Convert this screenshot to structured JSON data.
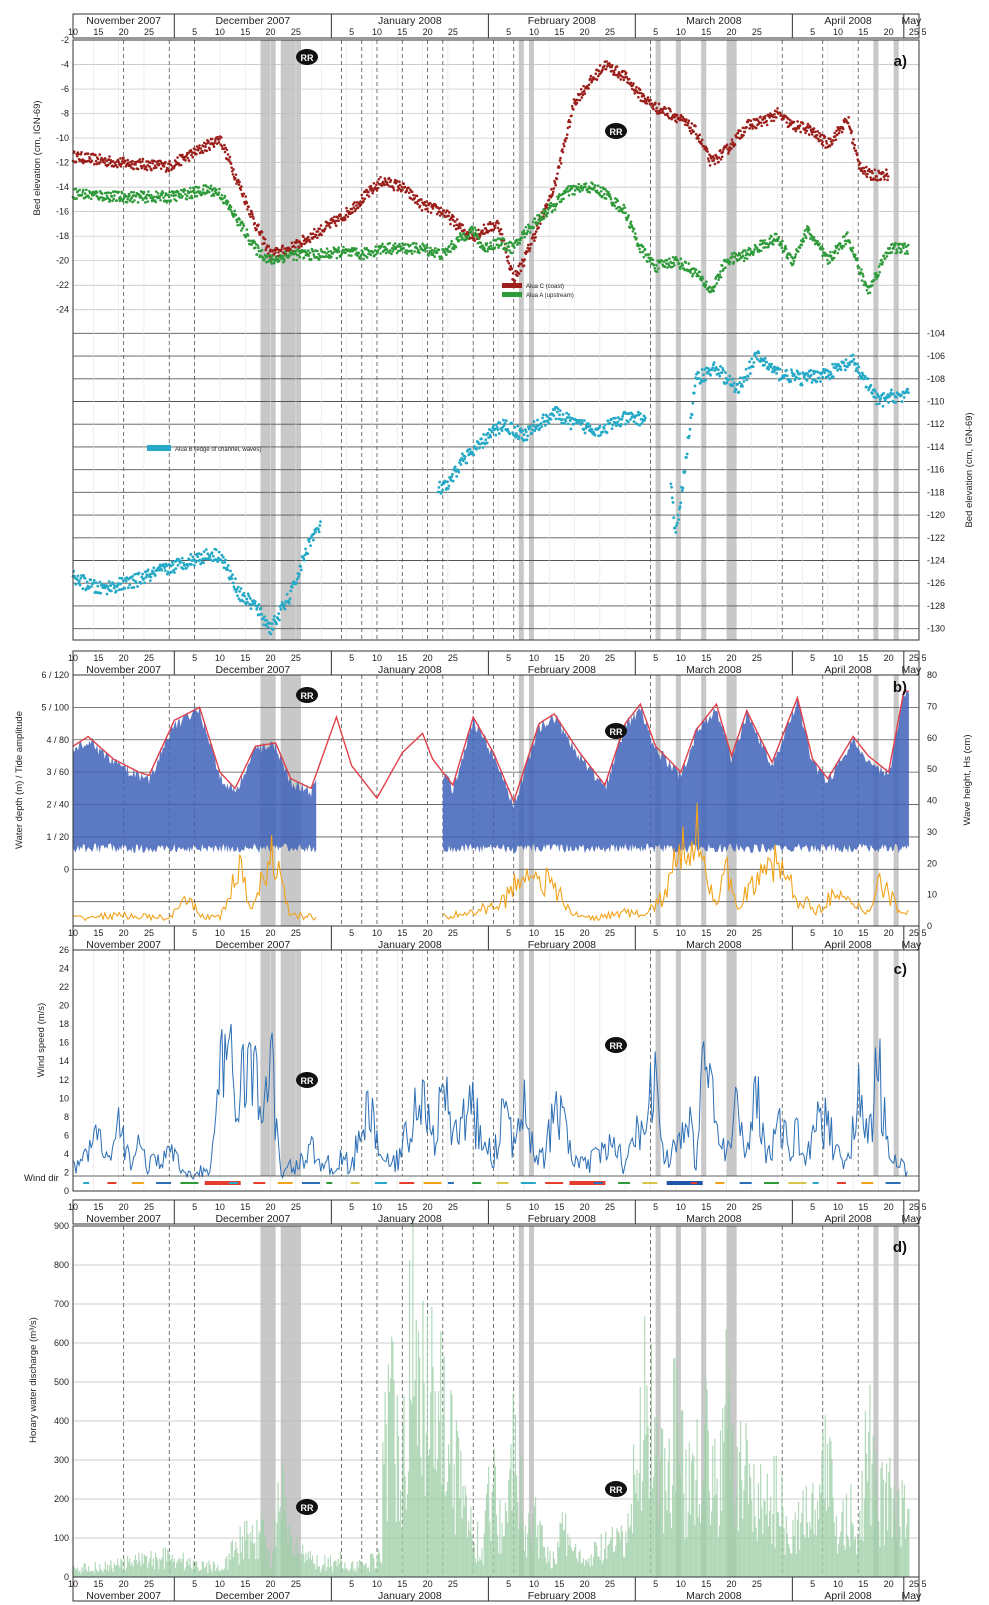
{
  "colors": {
    "site_c": "#9b1f1a",
    "site_a": "#2f9a3a",
    "site_b": "#25a9c6",
    "water_depth": "#3f62b8",
    "tide_amplitude": "#e0404a",
    "wave_height": "#f2a31b",
    "wind_speed": "#2d6fb5",
    "discharge": "#9fcfa8",
    "event_shade": "#c8c8c8"
  },
  "rr_label": "RR",
  "month_labels": [
    "November 2007",
    "December 2007",
    "January 2008",
    "February 2008",
    "March 2008",
    "April 2008",
    "May"
  ],
  "chart_data": [
    {
      "id": "a",
      "type": "scatter",
      "panel_label": "a)",
      "ylabel": "Bed elevation (cm, IGN-69)",
      "ylim": [
        -25,
        -2
      ],
      "yticks": [
        -2,
        -4,
        -6,
        -8,
        -10,
        -12,
        -14,
        -16,
        -18,
        -20,
        -22,
        -24
      ],
      "legend": [
        "Alua C (coast)",
        "Alua A (upstream)"
      ],
      "series": [
        {
          "name": "Alua C (coast)",
          "x": [
            1,
            10,
            20,
            28,
            30,
            34,
            37,
            40,
            44,
            50,
            54,
            58,
            62,
            66,
            70,
            74,
            78,
            80,
            82,
            85,
            88,
            90,
            93,
            96,
            98,
            100,
            103,
            106,
            110,
            113,
            116,
            120,
            124,
            127,
            130,
            134,
            138,
            140,
            143,
            146,
            150,
            154,
            156,
            158,
            162
          ],
          "values": [
            -11.5,
            -12,
            -12.3,
            -10.5,
            -10,
            -14,
            -17,
            -19.5,
            -19,
            -17.5,
            -16.5,
            -15,
            -13.5,
            -14,
            -15.5,
            -16,
            -17.5,
            -18,
            -17.5,
            -17,
            -21.5,
            -20,
            -17,
            -14,
            -10.5,
            -7,
            -5.5,
            -4,
            -5,
            -6.5,
            -7.5,
            -8.2,
            -9.5,
            -12,
            -11,
            -9,
            -8.5,
            -8,
            -9,
            -9.2,
            -10.5,
            -8.5,
            -12,
            -13,
            -13
          ]
        },
        {
          "name": "Alua A (upstream)",
          "x": [
            1,
            10,
            20,
            28,
            30,
            34,
            37,
            40,
            44,
            50,
            54,
            58,
            62,
            66,
            70,
            74,
            78,
            80,
            82,
            85,
            88,
            90,
            93,
            96,
            98,
            100,
            103,
            106,
            110,
            113,
            116,
            120,
            124,
            127,
            130,
            134,
            138,
            140,
            143,
            146,
            150,
            154,
            156,
            158,
            162
          ],
          "values": [
            -14.5,
            -14.8,
            -14.8,
            -14.2,
            -14.5,
            -17,
            -19,
            -20,
            -19.5,
            -19.5,
            -19.3,
            -19.5,
            -19,
            -19,
            -19,
            -19.5,
            -18,
            -17.5,
            -19,
            -18.5,
            -19,
            -17.8,
            -16.5,
            -15.5,
            -14.5,
            -14.2,
            -14,
            -14.5,
            -16,
            -19,
            -20.5,
            -20,
            -21,
            -22.5,
            -20,
            -19.5,
            -18.5,
            -18.2,
            -20,
            -17.5,
            -20,
            -18,
            -20.5,
            -22.5,
            -19
          ]
        }
      ]
    },
    {
      "id": "a2",
      "type": "scatter",
      "ylabel": "Bed elevation (cm, IGN-69)",
      "ylim": [
        -131,
        -103
      ],
      "yticks": [
        -104,
        -106,
        -108,
        -110,
        -112,
        -114,
        -116,
        -118,
        -120,
        -122,
        -124,
        -126,
        -128,
        -130
      ],
      "legend": [
        "Alua B (edge of channel, waves)"
      ],
      "series": [
        {
          "name": "Alua B (edge of channel, waves)",
          "x": [
            1,
            6,
            12,
            18,
            24,
            28,
            30,
            34,
            37,
            40,
            44,
            48,
            52,
            56,
            60,
            63,
            65,
            68,
            70,
            75,
            78,
            80,
            83,
            86,
            90,
            93,
            96,
            100,
            105,
            110,
            115,
            118,
            120,
            124,
            128,
            132,
            136,
            140,
            145,
            150,
            155,
            160,
            163
          ],
          "values": [
            -125.5,
            -126.5,
            -126,
            -125,
            -124,
            -123.5,
            -123.5,
            -127,
            -128,
            -130,
            -127,
            -122,
            -120,
            -118,
            -117.5,
            -119,
            -120.5,
            -118,
            -118,
            -117.5,
            -115,
            -114.5,
            -113,
            -112,
            -113,
            -112,
            -111,
            -112,
            -112.5,
            -111.5,
            -111.5,
            -112,
            -122,
            -108,
            -107,
            -109,
            -106,
            -107.5,
            -108,
            -107.5,
            -106.5,
            -110,
            -109.5
          ]
        }
      ]
    },
    {
      "id": "b",
      "type": "line",
      "panel_label": "b)",
      "ylabel": "Water depth (m) / Tide amplitude",
      "ylabel_right": "Wave height, Hs (cm)",
      "yticks_left": [
        "6 / 120",
        "5 / 100",
        "4 / 80",
        "3 / 60",
        "2 / 40",
        "1 / 20",
        "0"
      ],
      "ylim_left": [
        -1.75,
        6
      ],
      "ylim_right": [
        0,
        80
      ],
      "yticks_right": [
        80,
        70,
        60,
        50,
        40,
        30,
        20,
        10,
        0
      ],
      "series": [
        {
          "name": "Tide amplitude",
          "x": [
            1,
            4,
            9,
            14,
            16,
            21,
            26,
            30,
            33,
            37,
            41,
            44,
            48,
            53,
            56,
            61,
            66,
            70,
            72,
            76,
            80,
            84,
            88,
            93,
            96,
            101,
            106,
            110,
            113,
            116,
            121,
            124,
            128,
            131,
            134,
            139,
            144,
            147,
            150,
            155,
            158,
            162,
            165
          ],
          "values": [
            3.8,
            4.1,
            3.4,
            3,
            2.9,
            4.6,
            5,
            3,
            2.5,
            3.8,
            3.9,
            2.8,
            2.5,
            4.7,
            3.2,
            2.2,
            3.6,
            4.2,
            3.4,
            2.6,
            4.7,
            3.6,
            2.1,
            4.5,
            4.8,
            3.6,
            2.6,
            4.5,
            5.1,
            3.8,
            3,
            4.3,
            5.1,
            3.5,
            4.9,
            3.3,
            5.3,
            3.4,
            2.8,
            4.1,
            3.5,
            3,
            5.5
          ]
        },
        {
          "name": "Water depth",
          "x": [
            1,
            32,
            58,
            146,
            165
          ],
          "values_low": [
            0.6,
            0.6,
            0.6,
            0.6,
            0.6
          ],
          "values_high": [
            4,
            4.6,
            4.5,
            4.6,
            4.6
          ]
        },
        {
          "name": "Wave height",
          "x": [
            1,
            10,
            20,
            24,
            26,
            30,
            34,
            36,
            40,
            44,
            50,
            54,
            58,
            60,
            62,
            64,
            66,
            68,
            72,
            80,
            86,
            90,
            95,
            100,
            104,
            110,
            114,
            118,
            120,
            124,
            128,
            130,
            132,
            136,
            140,
            144,
            148,
            150,
            154,
            158,
            160,
            164
          ],
          "values": [
            3,
            4,
            3,
            10,
            4,
            3,
            22,
            5,
            28,
            4,
            3,
            4,
            3,
            14,
            6,
            14,
            4,
            3,
            3,
            5,
            9,
            21,
            16,
            4,
            3,
            5,
            4,
            12,
            24,
            37,
            8,
            20,
            9,
            16,
            25,
            10,
            6,
            11,
            9,
            5,
            18,
            6
          ]
        }
      ]
    },
    {
      "id": "c",
      "type": "area",
      "panel_label": "c)",
      "ylabel": "Wind speed (m/s)",
      "ylim": [
        0,
        26
      ],
      "yticks": [
        0,
        2,
        4,
        6,
        8,
        10,
        12,
        14,
        16,
        18,
        20,
        22,
        24,
        26
      ],
      "wind_dir_label": "Wind dir",
      "series": [
        {
          "name": "Wind speed",
          "x": [
            1,
            4,
            6,
            8,
            10,
            12,
            14,
            16,
            18,
            20,
            22,
            24,
            26,
            28,
            30,
            32,
            34,
            36,
            38,
            40,
            42,
            44,
            46,
            48,
            50,
            52,
            54,
            56,
            58,
            60,
            62,
            64,
            66,
            68,
            70,
            72,
            74,
            76,
            78,
            80,
            82,
            84,
            86,
            88,
            90,
            92,
            94,
            96,
            98,
            100,
            102,
            104,
            106,
            108,
            110,
            112,
            114,
            116,
            118,
            120,
            122,
            124,
            126,
            128,
            130,
            132,
            134,
            136,
            138,
            140,
            142,
            144,
            146,
            148,
            150,
            152,
            154,
            156,
            158,
            160,
            162,
            164
          ],
          "values": [
            3,
            5,
            7,
            3,
            8,
            4,
            6,
            3,
            4,
            5,
            3,
            2,
            3,
            2,
            14,
            18,
            12,
            17,
            10,
            17,
            2,
            3,
            4,
            5,
            4,
            3,
            4,
            3,
            8,
            10,
            4,
            3,
            5,
            10,
            12,
            6,
            12,
            8,
            9,
            10,
            6,
            4,
            11,
            5,
            14,
            5,
            4,
            10,
            8,
            4,
            3,
            4,
            5,
            6,
            3,
            6,
            12,
            13,
            4,
            5,
            10,
            4,
            20,
            8,
            4,
            10,
            6,
            12,
            5,
            8,
            6,
            7,
            5,
            10,
            8,
            5,
            4,
            12,
            6,
            16,
            4,
            3
          ]
        }
      ]
    },
    {
      "id": "d",
      "type": "area",
      "panel_label": "d)",
      "ylabel": "Horary water discharge (m³/s)",
      "ylim": [
        0,
        900
      ],
      "yticks": [
        0,
        100,
        200,
        300,
        400,
        500,
        600,
        700,
        800,
        900
      ],
      "series": [
        {
          "name": "Discharge",
          "x": [
            1,
            8,
            15,
            20,
            24,
            28,
            30,
            34,
            38,
            40,
            42,
            44,
            46,
            48,
            50,
            54,
            58,
            62,
            54,
            60,
            62,
            64,
            66,
            68,
            70,
            72,
            74,
            76,
            78,
            80,
            82,
            84,
            86,
            88,
            90,
            92,
            94,
            96,
            98,
            100,
            102,
            104,
            106,
            108,
            110,
            112,
            114,
            116,
            118,
            120,
            122,
            124,
            126,
            128,
            130,
            132,
            134,
            136,
            138,
            140,
            142,
            144,
            146,
            148,
            150,
            152,
            154,
            156,
            158,
            160,
            162,
            164
          ],
          "values": [
            30,
            40,
            60,
            80,
            50,
            40,
            40,
            120,
            180,
            60,
            300,
            120,
            80,
            60,
            50,
            60,
            40,
            100,
            50,
            60,
            450,
            600,
            500,
            850,
            700,
            880,
            600,
            450,
            300,
            150,
            120,
            380,
            100,
            700,
            120,
            200,
            120,
            60,
            180,
            100,
            40,
            90,
            110,
            120,
            130,
            350,
            700,
            500,
            320,
            600,
            300,
            500,
            480,
            300,
            600,
            350,
            400,
            300,
            250,
            300,
            200,
            180,
            260,
            200,
            500,
            120,
            300,
            100,
            520,
            250,
            300,
            280
          ]
        }
      ]
    }
  ]
}
